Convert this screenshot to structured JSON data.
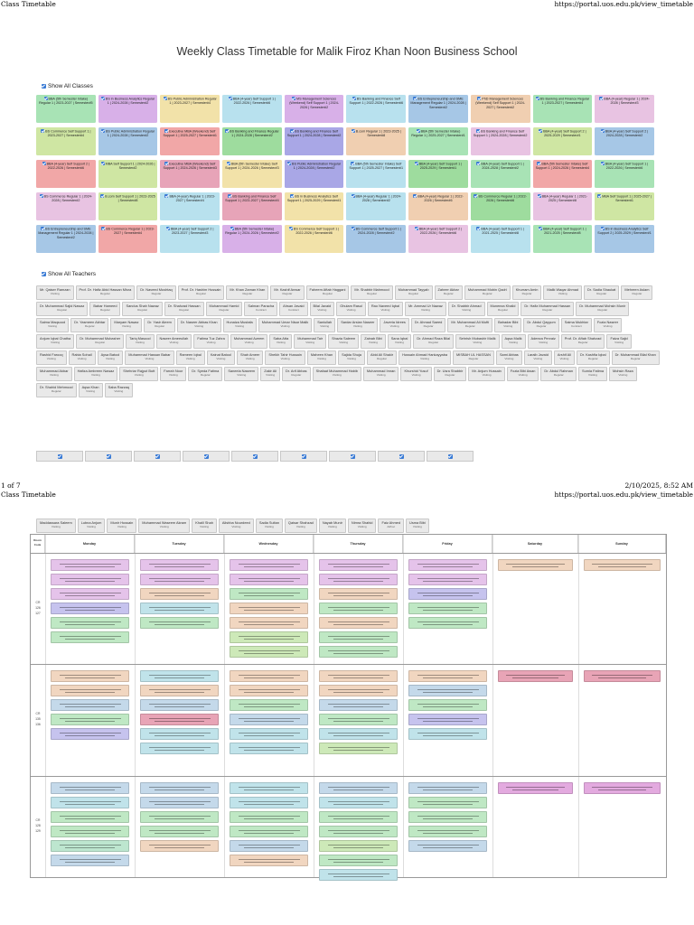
{
  "print": {
    "title": "Class Timetable",
    "url": "https://portal.uos.edu.pk/view_timetable",
    "page": "1 of 7",
    "datetime": "2/10/2025, 8:52 AM"
  },
  "page_title": "Weekly Class Timetable for Malik Firoz Khan Noon Business School",
  "classes_toggle": "Show All Classes",
  "teachers_toggle": "Show All Teachers",
  "classes": [
    {
      "label": "BBA (5th Semester Intake) Regular 1 | 2023-2027 | Semester#5",
      "color": "c1"
    },
    {
      "label": "BS in Business Analytics Regular 1 | 2024-2028 | Semester#2",
      "color": "c2"
    },
    {
      "label": "BS Public Administration Regular 1 | 2023-2027 | Semester#4",
      "color": "c3"
    },
    {
      "label": "BBA (4-year) Self Support 1 | 2022-2026 | Semester#6",
      "color": "c4"
    },
    {
      "label": "MS Management Sciences (Weekend) Self Support 1 | 2024-2026 | Semester#2",
      "color": "c2"
    },
    {
      "label": "BS Banking and Finance Self Support 1 | 2022-2026 | Semester#6",
      "color": "c4"
    },
    {
      "label": "BS Entrepreneurship and SME Management Regular 1 | 2024-2028 | Semester#2",
      "color": "c10"
    },
    {
      "label": "PhD Management Sciences (Weekend) Self Support 1 | 2024-2027 | Semester#2",
      "color": "c6"
    },
    {
      "label": "BS Banking and Finance Regular 1 | 2023-2027 | Semester#4",
      "color": "c1"
    },
    {
      "label": "BBA (4-year) Regular 1 | 2024-2028 | Semester#3",
      "color": "c8"
    },
    {
      "label": "BS Commerce Self Support 1 | 2023-2027 | Semester#4",
      "color": "c9"
    },
    {
      "label": "BS Public Administration Regular 1 | 2024-2028 | Semester#2",
      "color": "c10"
    },
    {
      "label": "Executive MBA (Weekend) Self Support 1 | 2025-2027 | Semester#1",
      "color": "c12"
    },
    {
      "label": "BS Banking and Finance Regular 1 | 2024-2028 | Semester#2",
      "color": "c11"
    },
    {
      "label": "BS Banking and Finance Self Support 1 | 2024-2028 | Semester#2",
      "color": "c5"
    },
    {
      "label": "B.com Regular 1 | 2023-2025 | Semester#8",
      "color": "c6"
    },
    {
      "label": "BBA (5th Semester Intake) Regular 1 | 2025-2027 | Semester#1",
      "color": "c1"
    },
    {
      "label": "BS Banking and Finance Self Support 1 | 2024-2028 | Semester#2",
      "color": "c8"
    },
    {
      "label": "BBA (4-year) Self Support 2 | 2025-2029 | Semester#1",
      "color": "c9"
    },
    {
      "label": "BBA (4-year) Self Support 2 | 2024-2028 | Semester#2",
      "color": "c10"
    },
    {
      "label": "BBA (4-year) Self Support 2 | 2022-2026 | Semester#6",
      "color": "c12"
    },
    {
      "label": "MBA Self Support 1 | 2024-2026 | Semester#2",
      "color": "c9"
    },
    {
      "label": "Executive MBA (Weekend) Self Support 1 | 2024-2026 | Semester#3",
      "color": "c7"
    },
    {
      "label": "BBA (5th Semester Intake) Self Support 1 | 2024-2026 | Semester#3",
      "color": "c3"
    },
    {
      "label": "BS Public Administration Regular 1 | 2024-2028 | Semester#2",
      "color": "c5"
    },
    {
      "label": "BBA (5th Semester Intake) Self Support 1 | 2025-2027 | Semester#1",
      "color": "c4"
    },
    {
      "label": "BBA (4-year) Self Support 1 | 2025-2029 | Semester#1",
      "color": "c11"
    },
    {
      "label": "BBA (4-year) Self Support 1 | 2024-2028 | Semester#2",
      "color": "c1"
    },
    {
      "label": "BBA (5th Semester Intake) Self Support 1 | 2024-2026 | Semester#4",
      "color": "c12"
    },
    {
      "label": "BBA (4-year) Self Support 1 | 2022-2026 | Semester#6",
      "color": "c1"
    },
    {
      "label": "BS Commerce Regular 1 | 2024-2028 | Semester#2",
      "color": "c8"
    },
    {
      "label": "B.com Self Support 1 | 2023-2025 | Semester#8",
      "color": "c9"
    },
    {
      "label": "BBA (4-year) Regular 1 | 2023-2027 | Semester#4",
      "color": "c4"
    },
    {
      "label": "BS Banking and Finance Self Support 1 | 2023-2027 | Semester#4",
      "color": "c7"
    },
    {
      "label": "BS in Business Analytics Self Support 1 | 2025-2029 | Semester#1",
      "color": "c3"
    },
    {
      "label": "BBA (4-year) Regular 1 | 2024-2028 | Semester#2",
      "color": "c4"
    },
    {
      "label": "BBA (4-year) Regular 1 | 2022-2026 | Semester#6",
      "color": "c6"
    },
    {
      "label": "BS Commerce Regular 1 | 2022-2026 | Semester#6",
      "color": "c11"
    },
    {
      "label": "BBA (4-year) Regular 1 | 2021-2025 | Semester#8",
      "color": "c8"
    },
    {
      "label": "MBA Self Support 1 | 2025-2027 | Semester#1",
      "color": "c9"
    },
    {
      "label": "BS Entrepreneurship and SME Management Regular 1 | 2024-2028 | Semester#2",
      "color": "c10"
    },
    {
      "label": "BS Commerce Regular 1 | 2023-2027 | Semester#4",
      "color": "c12"
    },
    {
      "label": "BBA (4-year) Self Support 2 | 2023-2027 | Semester#3",
      "color": "c4"
    },
    {
      "label": "BBA (5th Semester Intake) Regular 1 | 2024-2026 | Semester#2",
      "color": "c2"
    },
    {
      "label": "BS Commerce Self Support 1 | 2022-2026 | Semester#6",
      "color": "c3"
    },
    {
      "label": "BS Commerce Self Support 1 | 2024-2028 | Semester#2",
      "color": "c10"
    },
    {
      "label": "BBA (4-year) Self Support 2 | 2022-2026 | Semester#6",
      "color": "c8"
    },
    {
      "label": "BBA (4-year) Self Support 1 | 2021-2025 | Semester#8",
      "color": "c4"
    },
    {
      "label": "BBA (4-year) Self Support 1 | 2021-2025 | Semester#8",
      "color": "c1"
    },
    {
      "label": "BS in Business Analytics Self Support 2 | 2025-2029 | Semester#1",
      "color": "c10"
    }
  ],
  "teachers": [
    {
      "n": "Mr. Qaiser Ramzan",
      "t": "Visiting"
    },
    {
      "n": "Prof. Dr. Hafiz Abid Hassan Mirza",
      "t": "Regular"
    },
    {
      "n": "Dr. Naveed Mushtaq",
      "t": "Regular"
    },
    {
      "n": "Prof. Dr. Hashim Hussain",
      "t": "Regular"
    },
    {
      "n": "Mr. Khan Zaman Khan",
      "t": "Regular"
    },
    {
      "n": "Mr. Kashif Anwar",
      "t": "Regular"
    },
    {
      "n": "Faheem Aftab Haggani",
      "t": "Regular"
    },
    {
      "n": "Mr. Shabbir Mahmood",
      "t": "Regular"
    },
    {
      "n": "Muhammad Tayyab",
      "t": "Regular"
    },
    {
      "n": "Zaheer Akbar",
      "t": "Regular"
    },
    {
      "n": "Muhammad Mobin Qadri",
      "t": "Regular"
    },
    {
      "n": "Khurram Amin",
      "t": "Regular"
    },
    {
      "n": "Malik Waqar Ahmad",
      "t": "Visiting"
    },
    {
      "n": "Dr. Sadia Shaukat",
      "t": "Regular"
    },
    {
      "n": "Mehreen Aslam",
      "t": "Regular"
    },
    {
      "n": "Dr. Muhammad Sajid Nawaz",
      "t": "Regular"
    },
    {
      "n": "Babar Hameed",
      "t": "Regular"
    },
    {
      "n": "Sandus Shah Nawaz",
      "t": "Regular"
    },
    {
      "n": "Dr. Shahzad Hassan",
      "t": "Regular"
    },
    {
      "n": "Muhammad Hamid",
      "t": "Regular"
    },
    {
      "n": "Salman Paracha",
      "t": "Contract"
    },
    {
      "n": "Ahsan Javaid",
      "t": "Contract"
    },
    {
      "n": "Bilal Javaid",
      "t": "Visiting"
    },
    {
      "n": "Ghulam Rasul",
      "t": "Visiting"
    },
    {
      "n": "Rao Naveed Iqbal",
      "t": "Visiting"
    },
    {
      "n": "Mr. Ammad Ur Nawaz",
      "t": "Visiting"
    },
    {
      "n": "Dr. Shabbir Ahmad",
      "t": "Visiting"
    },
    {
      "n": "Muneeza Khalid",
      "t": "Regular"
    },
    {
      "n": "Dr. Hafiz Muhammad Hassan",
      "t": "Regular"
    },
    {
      "n": "Dr. Muhammad Mohsin Munir",
      "t": "Regular"
    },
    {
      "n": "Saima Maqsood",
      "t": "Visiting"
    },
    {
      "n": "Dr. Yasmeen Akhtar",
      "t": "Regular"
    },
    {
      "n": "Maryam Nawaz",
      "t": "Visiting"
    },
    {
      "n": "Dr. Yasir Aleem",
      "t": "Regular"
    },
    {
      "n": "Dr. Naseer Abbas Khan",
      "t": "Visiting"
    },
    {
      "n": "Hunaiza Mustafa",
      "t": "Visiting"
    },
    {
      "n": "Muhammad Umar Nisar Malik",
      "t": "Visiting"
    },
    {
      "n": "Saniullah",
      "t": "Visiting"
    },
    {
      "n": "Sardar Arslan Naseer",
      "t": "Visiting"
    },
    {
      "n": "Javeria Idrees",
      "t": "Visiting"
    },
    {
      "n": "Dr. Ahmad Saeed",
      "t": "Regular"
    },
    {
      "n": "Mr. Muhammad Ali Mufti",
      "t": "Regular"
    },
    {
      "n": "Bahadar Bibi",
      "t": "Visiting"
    },
    {
      "n": "Dr. Abdul Qayyum",
      "t": "Regular"
    },
    {
      "n": "Saima Mukhtar",
      "t": "Contract"
    },
    {
      "n": "Fozia Naseer",
      "t": "Visiting"
    },
    {
      "n": "Anjum Iqbal Chatha",
      "t": "Visiting"
    },
    {
      "n": "Dr. Muhammad Mubasher",
      "t": "Regular"
    },
    {
      "n": "Tariq Masood",
      "t": "Visiting"
    },
    {
      "n": "Naseer Ameeullah",
      "t": "Visiting"
    },
    {
      "n": "Fatima Tuz Zahra",
      "t": "Visiting"
    },
    {
      "n": "Muhammad Azeem",
      "t": "Visiting"
    },
    {
      "n": "Saba Atta",
      "t": "Visiting"
    },
    {
      "n": "Muhammad Tair",
      "t": "Visiting"
    },
    {
      "n": "Shazia Saleem",
      "t": "Visiting"
    },
    {
      "n": "Zainab Bibi",
      "t": "Visiting"
    },
    {
      "n": "Sana Iqbal",
      "t": "Visiting"
    },
    {
      "n": "Dr. Ahmad Raza Bilal",
      "t": "Regular"
    },
    {
      "n": "Sehrish Mubashir Malik",
      "t": "Visiting"
    },
    {
      "n": "Aqsa Malik",
      "t": "Visiting"
    },
    {
      "n": "Adeeza Pervaiz",
      "t": "Visiting"
    },
    {
      "n": "Prof. Dr. Aftab Shahzad",
      "t": "Regular"
    },
    {
      "n": "Faiza Sajid",
      "t": "Visiting"
    },
    {
      "n": "Rashid Farooq",
      "t": "Visiting"
    },
    {
      "n": "Rabia Sohail",
      "t": "Visiting"
    },
    {
      "n": "Aysa Batool",
      "t": "Visiting"
    },
    {
      "n": "Muhammad Hassan Babar",
      "t": "Visiting"
    },
    {
      "n": "Rameen Iqbal",
      "t": "Visiting"
    },
    {
      "n": "Kainat Batool",
      "t": "Visiting"
    },
    {
      "n": "Shah Ameer",
      "t": "Visiting"
    },
    {
      "n": "Sheikh Tahir Hussain",
      "t": "Visiting"
    },
    {
      "n": "Maheen Khan",
      "t": "Visiting"
    },
    {
      "n": "Sajida Shuja",
      "t": "Visiting"
    },
    {
      "n": "Abid Ali Shakir",
      "t": "Regular"
    },
    {
      "n": "Hussain Ahmad Hankayyaba",
      "t": "Visiting"
    },
    {
      "n": "MISBAH UL HASSAN",
      "t": "Regular"
    },
    {
      "n": "Sami Abbas",
      "t": "Visiting"
    },
    {
      "n": "Laraib Javaid",
      "t": "Visiting"
    },
    {
      "n": "Arshif Ali",
      "t": "Visiting"
    },
    {
      "n": "Dr. Kashfia Iqbal",
      "t": "Regular"
    },
    {
      "n": "Dr. Muhammad Bilal Khan",
      "t": "Regular"
    },
    {
      "n": "Muhammad Akbar",
      "t": "Visiting"
    },
    {
      "n": "Hafiza Ambreen Nawaz",
      "t": "Visiting"
    },
    {
      "n": "Shehriar Rajput Butt",
      "t": "Visiting"
    },
    {
      "n": "Farrah Noor",
      "t": "Visiting"
    },
    {
      "n": "Dr. Syeda Fatima",
      "t": "Regular"
    },
    {
      "n": "Saneela Naseem",
      "t": "Visiting"
    },
    {
      "n": "Zakir Ali",
      "t": "Visiting"
    },
    {
      "n": "Dr. Arif Abbas",
      "t": "Regular"
    },
    {
      "n": "Shafaat Muhammad Habib",
      "t": "Visiting"
    },
    {
      "n": "Muhammad Imran",
      "t": "Visiting"
    },
    {
      "n": "Khurshid Yusuf",
      "t": "Visiting"
    },
    {
      "n": "Dr. Usra Shabbir",
      "t": "Regular"
    },
    {
      "n": "Mr. Anjum Hussain",
      "t": "Visiting"
    },
    {
      "n": "Fozia Bibi Awan",
      "t": "Visiting"
    },
    {
      "n": "Dr. Abdul Rahman",
      "t": "Regular"
    },
    {
      "n": "Sumia Fatima",
      "t": "Visiting"
    },
    {
      "n": "Mohsin Raza",
      "t": "Visiting"
    },
    {
      "n": "Dr. Shahid Mehmood",
      "t": "Regular"
    },
    {
      "n": "Aqsa Khan",
      "t": "Visiting"
    },
    {
      "n": "Saba Razzaq",
      "t": "Visiting"
    }
  ],
  "teachers_page2": [
    {
      "n": "Maddassara Saleem",
      "t": "Visiting"
    },
    {
      "n": "Lubna Anjum",
      "t": "Visiting"
    },
    {
      "n": "Munir Hussain",
      "t": "Visiting"
    },
    {
      "n": "Muhammad Waseem Akram",
      "t": "Visiting"
    },
    {
      "n": "Khalil Shah",
      "t": "Visiting"
    },
    {
      "n": "Alishba Nourdeed",
      "t": "Visiting"
    },
    {
      "n": "Sadia Sultan",
      "t": "Visiting"
    },
    {
      "n": "Qaisar Shahzad",
      "t": "Visiting"
    },
    {
      "n": "Nayab Munir",
      "t": "Visiting"
    },
    {
      "n": "Nimra Shahid",
      "t": "Visiting"
    },
    {
      "n": "Faiz Ahmed",
      "t": "Adhoc"
    },
    {
      "n": "Usma Bibi",
      "t": "Visiting"
    }
  ],
  "grid": {
    "room_code_label": "Room Code",
    "days": [
      "Monday",
      "Tuesday",
      "Wednesday",
      "Thursday",
      "Friday",
      "Saturday",
      "Sunday"
    ],
    "rooms": [
      "CR 126 127",
      "CR 135 136",
      "CR 128 129"
    ]
  }
}
